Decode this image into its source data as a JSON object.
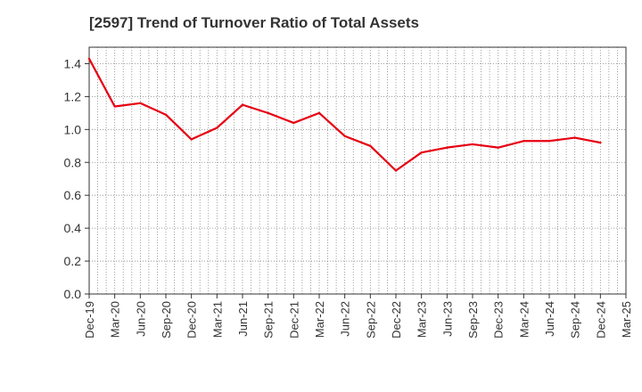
{
  "chart_data": {
    "type": "line",
    "title": "[2597]  Trend of Turnover Ratio of Total Assets",
    "xlabel": "",
    "ylabel": "",
    "ylim": [
      0,
      1.5
    ],
    "yticks": [
      "0.0",
      "0.2",
      "0.4",
      "0.6",
      "0.8",
      "1.0",
      "1.2",
      "1.4"
    ],
    "ytick_values": [
      0,
      0.2,
      0.4,
      0.6,
      0.8,
      1.0,
      1.2,
      1.4
    ],
    "xticks": [
      "Dec-19",
      "Mar-20",
      "Jun-20",
      "Sep-20",
      "Dec-20",
      "Mar-21",
      "Jun-21",
      "Sep-21",
      "Dec-21",
      "Mar-22",
      "Jun-22",
      "Sep-22",
      "Dec-22",
      "Mar-23",
      "Jun-23",
      "Sep-23",
      "Dec-23",
      "Mar-24",
      "Jun-24",
      "Sep-24",
      "Dec-24",
      "Mar-25"
    ],
    "grid": true,
    "line_color": "#e60012",
    "series": [
      {
        "x": [
          "Dec-19",
          "Mar-20",
          "Jun-20",
          "Sep-20",
          "Dec-20",
          "Mar-21",
          "Jun-21",
          "Sep-21",
          "Dec-21",
          "Mar-22",
          "Jun-22",
          "Sep-22",
          "Dec-22",
          "Mar-23",
          "Jun-23",
          "Sep-23",
          "Dec-23",
          "Mar-24",
          "Jun-24",
          "Sep-24",
          "Dec-24"
        ],
        "values": [
          1.43,
          1.14,
          1.16,
          1.09,
          0.94,
          1.01,
          1.15,
          1.1,
          1.04,
          1.1,
          0.96,
          0.9,
          0.75,
          0.86,
          0.89,
          0.91,
          0.89,
          0.93,
          0.93,
          0.95,
          0.92
        ]
      }
    ]
  }
}
